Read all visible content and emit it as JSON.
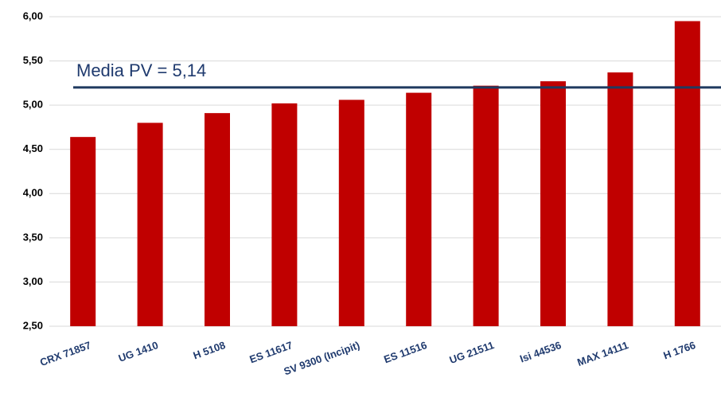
{
  "chart_data": {
    "type": "bar",
    "categories": [
      "CRX 71857",
      "UG 1410",
      "H 5108",
      "ES 11617",
      "SV 9300 (Incipit)",
      "ES 11516",
      "UG 21511",
      "Isi 44536",
      "MAX 14111",
      "H 1766"
    ],
    "values": [
      4.64,
      4.8,
      4.91,
      5.02,
      5.06,
      5.14,
      5.22,
      5.27,
      5.37,
      5.95
    ],
    "color": "#c00000",
    "ylim": [
      2.5,
      6.0
    ],
    "yticks": [
      {
        "value": 2.5,
        "label": "2,50"
      },
      {
        "value": 3.0,
        "label": "3,00"
      },
      {
        "value": 3.5,
        "label": "3,50"
      },
      {
        "value": 4.0,
        "label": "4,00"
      },
      {
        "value": 4.5,
        "label": "4,50"
      },
      {
        "value": 5.0,
        "label": "5,00"
      },
      {
        "value": 5.5,
        "label": "5,50"
      },
      {
        "value": 6.0,
        "label": "6,00"
      }
    ],
    "grid": true,
    "reference_line": {
      "value": 5.2,
      "color": "#1f3a5f"
    },
    "annotation": "Media PV = 5,14"
  }
}
